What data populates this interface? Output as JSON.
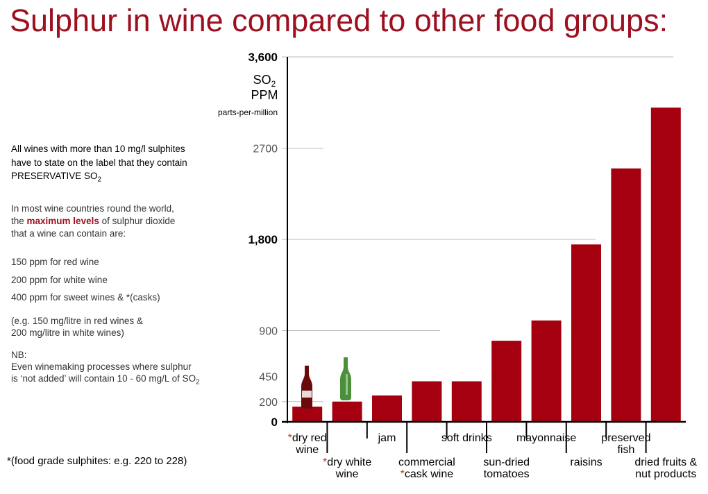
{
  "title": "Sulphur in wine compared to other food groups:",
  "notes": {
    "label_rule": [
      "All wines with more than 10 mg/l sulphites",
      "have to state on the label that they contain"
    ],
    "label_rule_so2": [
      "PRESERVATIVE SO",
      "2"
    ],
    "max_intro_1": "In most wine countries round the world,",
    "max_intro_2_pre": "the ",
    "max_intro_2_hl": "maximum levels",
    "max_intro_2_post": " of sulphur dioxide",
    "max_intro_3": "that a wine can contain are:",
    "red": "150 ppm for red wine",
    "white": "200 ppm for white wine",
    "sweet": "400 ppm for sweet wines & *(casks)",
    "eg_1": "(e.g. 150 mg/litre in red wines &",
    "eg_2": "200 mg/litre in white wines)",
    "nb_1": "NB:",
    "nb_2": "Even winemaking processes where sulphur",
    "nb_3_pre": "is ‘not added’ will contain 10 - 60 mg/L of SO",
    "nb_3_sub": "2"
  },
  "footnote": "*(food grade sulphites: e.g. 220 to 228)",
  "colors": {
    "bar": "#a50010",
    "title": "#9c1020",
    "red_bottle": "#6b0a0a",
    "white_bottle": "#4a8f3a"
  },
  "chart_data": {
    "type": "bar",
    "unit_label": [
      "SO",
      "2",
      "PPM",
      "parts-per-million"
    ],
    "categories": [
      {
        "lines": [
          "*dry red",
          "wine"
        ],
        "row": 0
      },
      {
        "lines": [
          "*dry white",
          "wine"
        ],
        "row": 1
      },
      {
        "lines": [
          "jam"
        ],
        "row": 0
      },
      {
        "lines": [
          "commercial",
          "*cask wine"
        ],
        "row": 1
      },
      {
        "lines": [
          "soft drinks"
        ],
        "row": 0
      },
      {
        "lines": [
          "sun-dried",
          "tomatoes"
        ],
        "row": 1
      },
      {
        "lines": [
          "mayonnaise"
        ],
        "row": 0
      },
      {
        "lines": [
          "raisins"
        ],
        "row": 1
      },
      {
        "lines": [
          "preserved",
          "fish"
        ],
        "row": 0
      },
      {
        "lines": [
          "dried fruits &",
          "nut products"
        ],
        "row": 1
      }
    ],
    "values": [
      150,
      200,
      260,
      400,
      400,
      800,
      1000,
      1750,
      2500,
      3100
    ],
    "yticks": [
      {
        "value": 0,
        "label": "0",
        "major": true
      },
      {
        "value": 200,
        "label": "200",
        "major": false
      },
      {
        "value": 450,
        "label": "450",
        "major": false
      },
      {
        "value": 900,
        "label": "900",
        "major": false
      },
      {
        "value": 1800,
        "label": "1,800",
        "major": true
      },
      {
        "value": 2700,
        "label": "2700",
        "major": false
      },
      {
        "value": 3600,
        "label": "3,600",
        "major": true
      }
    ],
    "ylim": [
      0,
      3600
    ]
  }
}
